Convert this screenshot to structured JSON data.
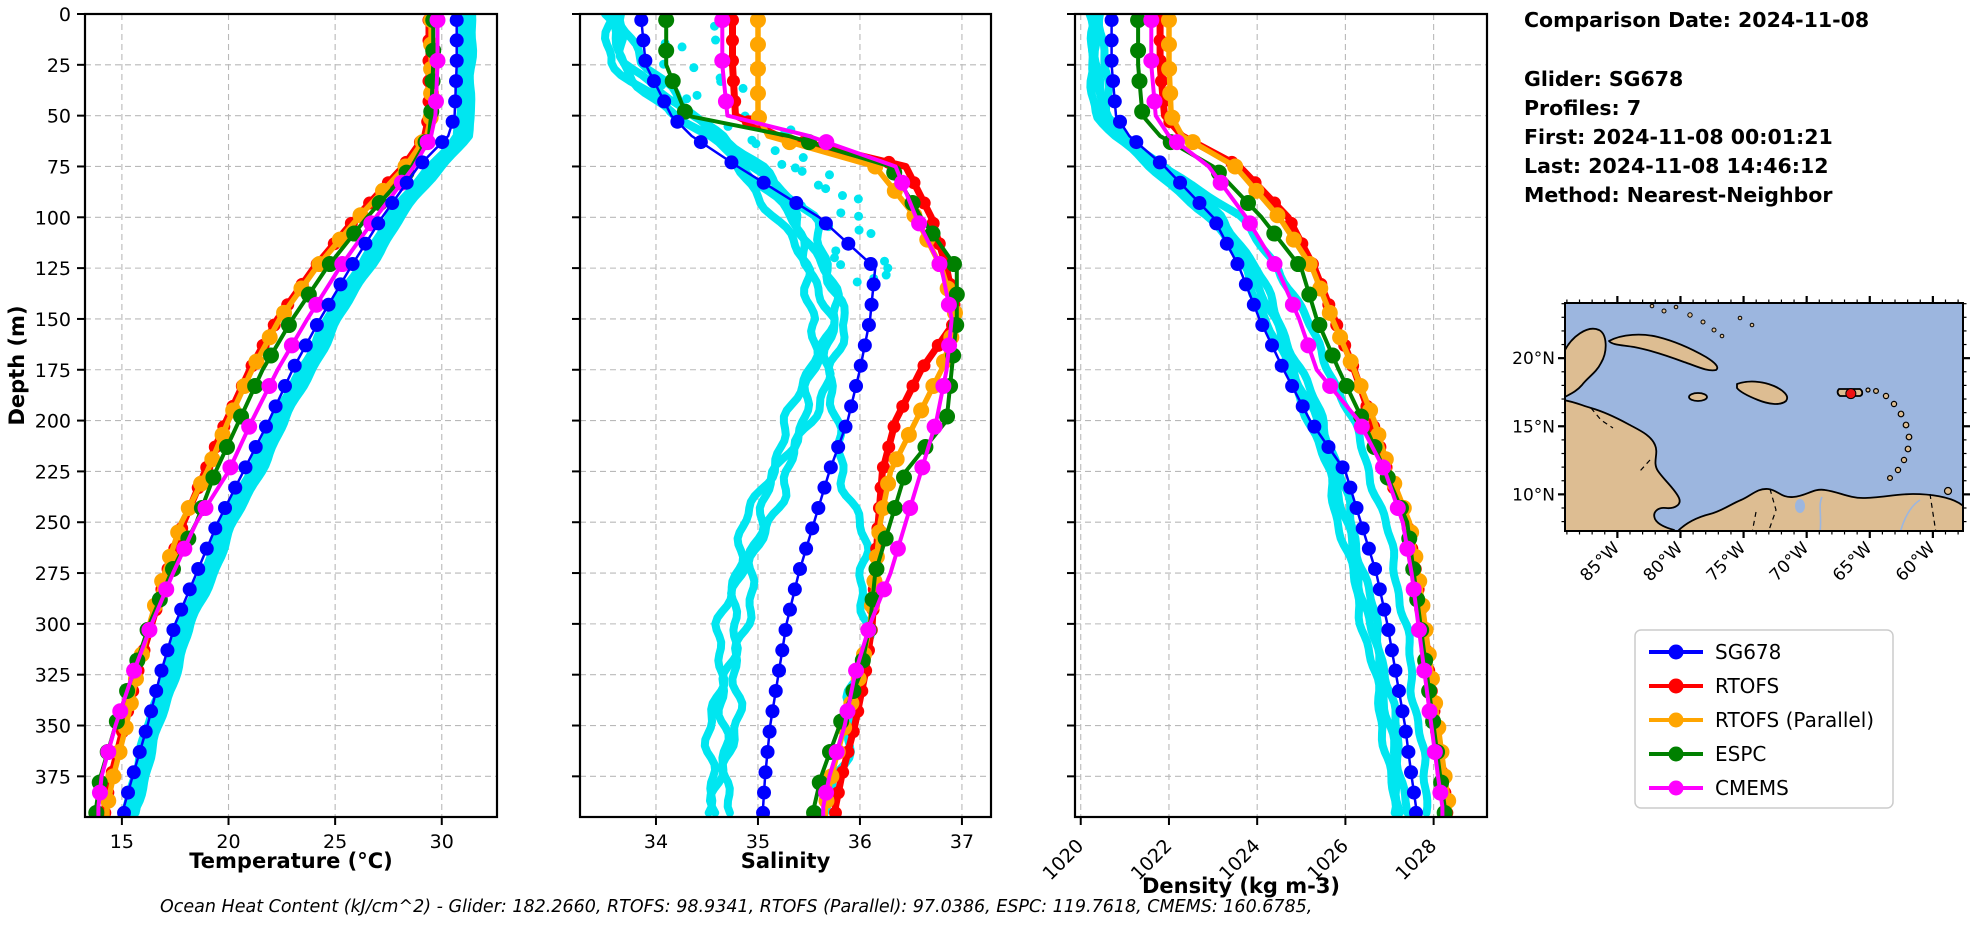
{
  "header": {
    "comparison_date": "Comparison Date: 2024-11-08",
    "glider": "Glider: SG678",
    "profiles": "Profiles: 7",
    "first": "First: 2024-11-08 00:01:21",
    "last": "Last: 2024-11-08 14:46:12",
    "method": "Method: Nearest-Neighbor"
  },
  "footer": {
    "ohc_text": "Ocean Heat Content (kJ/cm^2) - Glider: 182.2660,  RTOFS: 98.9341,  RTOFS (Parallel): 97.0386,  ESPC: 119.7618,  CMEMS: 160.6785,"
  },
  "legend": {
    "items": [
      {
        "label": "SG678",
        "color": "#0000ff"
      },
      {
        "label": "RTOFS",
        "color": "#ff0000"
      },
      {
        "label": "RTOFS (Parallel)",
        "color": "#ffa500"
      },
      {
        "label": "ESPC",
        "color": "#008000"
      },
      {
        "label": "CMEMS",
        "color": "#ff00ff"
      }
    ]
  },
  "map": {
    "xtick_labels": [
      "85°W",
      "80°W",
      "75°W",
      "70°W",
      "65°W",
      "60°W"
    ],
    "ytick_labels": [
      "20°N",
      "15°N",
      "10°N"
    ],
    "ocean_color": "#9cb6df",
    "land_color": "#ddbd92",
    "marker": {
      "name": "glider-location",
      "lon": -66.5,
      "lat": 17.4,
      "color": "#ee1111"
    }
  },
  "chart_data": {
    "type": "line",
    "profile_orientation": "depth-profiles",
    "depth_axis": {
      "label": "Depth (m)",
      "ticks": [
        0,
        25,
        50,
        75,
        100,
        125,
        150,
        175,
        200,
        225,
        250,
        275,
        300,
        325,
        350,
        375
      ],
      "range": [
        0,
        395
      ]
    },
    "control_depths": [
      0,
      25,
      50,
      60,
      75,
      100,
      125,
      150,
      175,
      200,
      225,
      250,
      275,
      300,
      325,
      350,
      375,
      390
    ],
    "series": [
      {
        "key": "SG678",
        "label": "SG678",
        "color": "#0000ff"
      },
      {
        "key": "RTOFS",
        "label": "RTOFS",
        "color": "#ff0000"
      },
      {
        "key": "RTOFS_P",
        "label": "RTOFS (Parallel)",
        "color": "#ffa500"
      },
      {
        "key": "ESPC",
        "label": "ESPC",
        "color": "#008000"
      },
      {
        "key": "CMEMS",
        "label": "CMEMS",
        "color": "#ff00ff"
      }
    ],
    "glider_raw_color": "#00e6f0",
    "panels": [
      {
        "id": "temperature",
        "xlabel": "Temperature (°C)",
        "xticks": [
          15,
          20,
          25,
          30
        ],
        "xlim": [
          13.27,
          32.59
        ],
        "rotate_xticklabels": false,
        "series_values": {
          "SG678": [
            30.7,
            30.7,
            30.6,
            30.3,
            28.9,
            27.2,
            25.7,
            24.3,
            23.0,
            21.9,
            20.7,
            19.5,
            18.5,
            17.5,
            16.8,
            16.2,
            15.5,
            15.1
          ],
          "RTOFS": [
            29.4,
            29.4,
            29.4,
            29.2,
            28.2,
            26.0,
            24.0,
            22.3,
            21.0,
            19.9,
            18.9,
            17.9,
            17.1,
            16.4,
            15.7,
            15.1,
            14.5,
            14.2
          ],
          "RTOFS_P": [
            29.5,
            29.5,
            29.5,
            29.3,
            28.3,
            26.1,
            24.1,
            22.4,
            21.1,
            20.0,
            19.0,
            17.8,
            17.0,
            16.3,
            15.7,
            15.2,
            14.6,
            14.3
          ],
          "ESPC": [
            29.6,
            29.6,
            29.5,
            29.4,
            28.6,
            26.5,
            24.6,
            23.0,
            21.6,
            20.5,
            19.4,
            18.5,
            17.3,
            16.3,
            15.5,
            14.7,
            14.0,
            13.8
          ],
          "CMEMS": [
            29.8,
            29.8,
            29.7,
            29.5,
            28.7,
            26.9,
            25.2,
            23.7,
            22.3,
            21.1,
            20.0,
            18.5,
            17.4,
            16.4,
            15.5,
            14.7,
            14.05,
            13.9
          ]
        },
        "glider_raw": {
          "base": [
            31.1,
            31.1,
            31.15,
            30.9,
            29.7,
            27.8,
            26.3,
            24.9,
            23.6,
            22.4,
            21.2,
            20.0,
            19.0,
            18.0,
            17.2,
            16.5,
            15.8,
            15.4
          ],
          "outlier": null,
          "strand_offsets": [
            -0.25,
            -0.08,
            0.1,
            0.28
          ],
          "wiggle": 0.07,
          "scatter": false
        }
      },
      {
        "id": "salinity",
        "xlabel": "Salinity",
        "xticks": [
          34,
          35,
          36,
          37
        ],
        "xlim": [
          33.255,
          37.285
        ],
        "rotate_xticklabels": false,
        "series_values": {
          "SG678": [
            33.85,
            33.9,
            34.15,
            34.35,
            34.8,
            35.6,
            36.15,
            36.1,
            36.0,
            35.88,
            35.7,
            35.55,
            35.4,
            35.28,
            35.2,
            35.12,
            35.07,
            35.05
          ],
          "RTOFS": [
            34.75,
            34.75,
            34.78,
            35.2,
            36.45,
            36.7,
            36.85,
            36.95,
            36.6,
            36.35,
            36.22,
            36.18,
            36.15,
            36.12,
            36.05,
            35.95,
            35.82,
            35.76
          ],
          "RTOFS_P": [
            35.0,
            35.0,
            35.0,
            35.1,
            36.15,
            36.55,
            36.8,
            36.95,
            36.8,
            36.55,
            36.3,
            36.2,
            36.15,
            36.1,
            36.0,
            35.85,
            35.72,
            35.66
          ],
          "ESPC": [
            34.1,
            34.1,
            34.3,
            35.3,
            36.3,
            36.6,
            36.95,
            36.95,
            36.9,
            36.85,
            36.45,
            36.3,
            36.15,
            36.1,
            36.0,
            35.8,
            35.62,
            35.55
          ],
          "CMEMS": [
            34.65,
            34.65,
            34.7,
            35.5,
            36.35,
            36.55,
            36.8,
            36.9,
            36.85,
            36.75,
            36.6,
            36.45,
            36.3,
            36.1,
            35.95,
            35.85,
            35.7,
            35.64
          ]
        },
        "glider_raw": {
          "base": [
            33.6,
            33.75,
            34.3,
            34.6,
            34.9,
            35.3,
            35.55,
            35.68,
            35.58,
            35.42,
            35.2,
            35.0,
            34.85,
            34.76,
            34.7,
            34.66,
            34.62,
            34.6
          ],
          "outlier": [
            33.5,
            33.6,
            34.15,
            34.5,
            35.0,
            35.5,
            35.72,
            35.82,
            35.76,
            35.72,
            35.85,
            35.98,
            36.05,
            36.05,
            35.98,
            35.9,
            35.78,
            35.72
          ],
          "strand_offsets": [
            -0.1,
            0,
            0.1
          ],
          "wiggle": 0.05,
          "scatter": true
        }
      },
      {
        "id": "density",
        "xlabel": "Density (kg m-3)",
        "xticks": [
          1020,
          1022,
          1024,
          1026,
          1028
        ],
        "xlim": [
          1019.87,
          1029.21
        ],
        "rotate_xticklabels": true,
        "series_values": {
          "SG678": [
            1020.7,
            1020.7,
            1020.8,
            1021.1,
            1021.9,
            1023.0,
            1023.6,
            1024.05,
            1024.6,
            1025.2,
            1026.0,
            1026.35,
            1026.7,
            1026.95,
            1027.15,
            1027.35,
            1027.5,
            1027.6
          ],
          "RTOFS": [
            1021.8,
            1021.8,
            1021.9,
            1022.3,
            1023.6,
            1024.7,
            1025.3,
            1025.75,
            1026.2,
            1026.6,
            1026.95,
            1027.4,
            1027.6,
            1027.75,
            1027.9,
            1028.05,
            1028.2,
            1028.3
          ],
          "RTOFS_P": [
            1022.0,
            1022.0,
            1022.05,
            1022.3,
            1023.5,
            1024.5,
            1025.25,
            1025.7,
            1026.2,
            1026.65,
            1027.0,
            1027.45,
            1027.65,
            1027.8,
            1027.95,
            1028.1,
            1028.25,
            1028.35
          ],
          "ESPC": [
            1021.3,
            1021.3,
            1021.4,
            1021.8,
            1023.0,
            1024.1,
            1025.0,
            1025.35,
            1025.85,
            1026.4,
            1026.9,
            1027.4,
            1027.55,
            1027.7,
            1027.85,
            1028.0,
            1028.15,
            1028.25
          ],
          "CMEMS": [
            1021.6,
            1021.6,
            1021.7,
            1022.0,
            1022.9,
            1023.75,
            1024.45,
            1024.95,
            1025.35,
            1026.3,
            1026.9,
            1027.3,
            1027.5,
            1027.65,
            1027.8,
            1027.95,
            1028.1,
            1028.2
          ]
        },
        "glider_raw": {
          "base": [
            1020.35,
            1020.4,
            1020.5,
            1020.9,
            1021.7,
            1023.1,
            1023.85,
            1024.35,
            1024.85,
            1025.35,
            1025.75,
            1026.0,
            1026.3,
            1026.55,
            1026.8,
            1027.0,
            1027.15,
            1027.25
          ],
          "outlier": [
            1020.25,
            1020.3,
            1020.45,
            1020.8,
            1021.9,
            1023.6,
            1024.5,
            1025.1,
            1025.65,
            1026.15,
            1026.55,
            1026.9,
            1027.15,
            1027.35,
            1027.5,
            1027.65,
            1027.8,
            1027.9
          ],
          "strand_offsets": [
            -0.15,
            0,
            0.13
          ],
          "wiggle": 0.05,
          "scatter": false
        }
      }
    ]
  }
}
